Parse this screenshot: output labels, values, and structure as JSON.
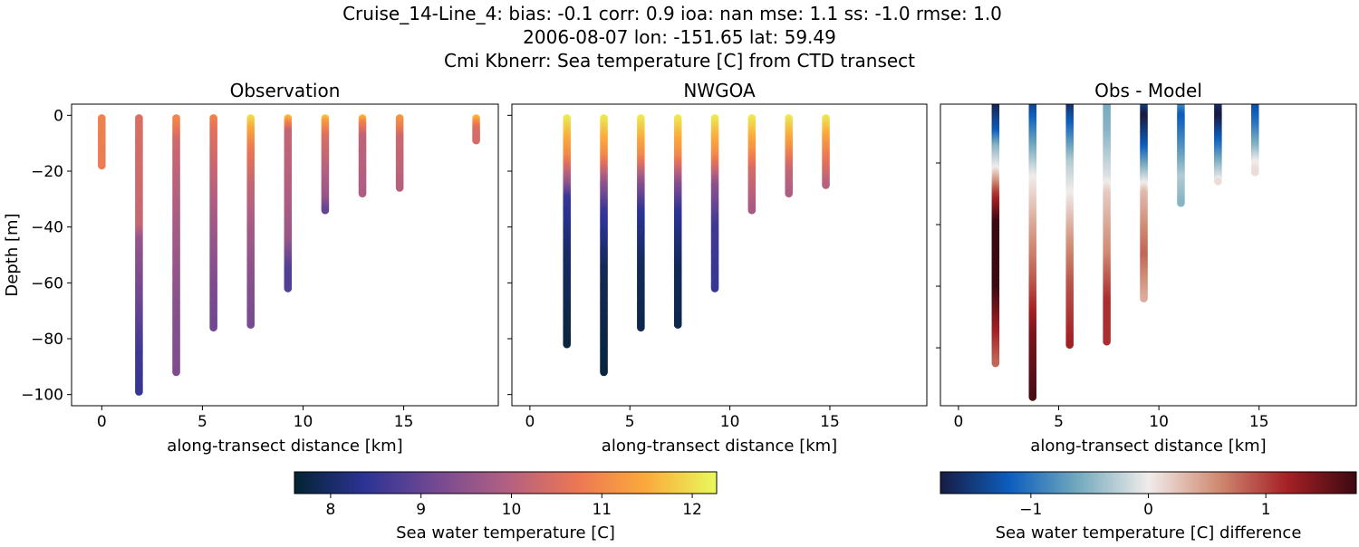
{
  "title_lines": [
    "Cruise_14-Line_4: bias: -0.1  corr: 0.9  ioa: nan  mse: 1.1  ss: -1.0  rmse: 1.0",
    "2006-08-07 lon: -151.65 lat: 59.49",
    "Cmi Kbnerr: Sea temperature [C] from CTD transect"
  ],
  "chart_data": [
    {
      "type": "scatter",
      "title": "Observation",
      "xlabel": "along-transect distance [km]",
      "ylabel": "Depth [m]",
      "xlim": [
        -1.5,
        19.7
      ],
      "ylim": [
        -104,
        4
      ],
      "xticks": [
        0,
        5,
        10,
        15
      ],
      "xtick_labels": [
        "0",
        "5",
        "10",
        "15"
      ],
      "yticks": [
        0,
        -20,
        -40,
        -60,
        -80,
        -100
      ],
      "ytick_labels": [
        "0",
        "−20",
        "−40",
        "−60",
        "−80",
        "−100"
      ],
      "colormap": "thermal",
      "profiles": [
        {
          "x": 0,
          "max_depth": 18,
          "temp_by_depth": [
            [
              0,
              10.9
            ],
            [
              18,
              10.8
            ]
          ]
        },
        {
          "x": 1.85,
          "max_depth": 99,
          "temp_by_depth": [
            [
              0,
              10.5
            ],
            [
              40,
              10.2
            ],
            [
              45,
              9.6
            ],
            [
              70,
              9.0
            ],
            [
              85,
              8.6
            ],
            [
              99,
              8.5
            ]
          ]
        },
        {
          "x": 3.7,
          "max_depth": 92,
          "temp_by_depth": [
            [
              0,
              11
            ],
            [
              3,
              10.9
            ],
            [
              10,
              10.3
            ],
            [
              40,
              9.8
            ],
            [
              70,
              9.4
            ],
            [
              92,
              9.3
            ]
          ]
        },
        {
          "x": 5.55,
          "max_depth": 76,
          "temp_by_depth": [
            [
              0,
              11
            ],
            [
              5,
              10.6
            ],
            [
              20,
              10.2
            ],
            [
              40,
              9.7
            ],
            [
              60,
              9.3
            ],
            [
              76,
              9.1
            ]
          ]
        },
        {
          "x": 7.4,
          "max_depth": 75,
          "temp_by_depth": [
            [
              0,
              12.1
            ],
            [
              5,
              11.5
            ],
            [
              12,
              10.8
            ],
            [
              25,
              10.2
            ],
            [
              40,
              9.8
            ],
            [
              60,
              9.4
            ],
            [
              75,
              9.2
            ]
          ]
        },
        {
          "x": 9.25,
          "max_depth": 62,
          "temp_by_depth": [
            [
              0,
              12
            ],
            [
              3,
              11
            ],
            [
              6,
              10.2
            ],
            [
              30,
              9.9
            ],
            [
              45,
              9.6
            ],
            [
              55,
              8.8
            ],
            [
              62,
              8.8
            ]
          ]
        },
        {
          "x": 11.1,
          "max_depth": 34,
          "temp_by_depth": [
            [
              0,
              12
            ],
            [
              3,
              11.2
            ],
            [
              8,
              10.5
            ],
            [
              20,
              10.0
            ],
            [
              30,
              9.6
            ],
            [
              34,
              9.0
            ]
          ]
        },
        {
          "x": 12.95,
          "max_depth": 28,
          "temp_by_depth": [
            [
              0,
              12
            ],
            [
              3,
              10.9
            ],
            [
              8,
              10.1
            ],
            [
              28,
              9.9
            ]
          ]
        },
        {
          "x": 14.8,
          "max_depth": 26,
          "temp_by_depth": [
            [
              0,
              11.3
            ],
            [
              5,
              10.8
            ],
            [
              8,
              10.3
            ],
            [
              26,
              10.0
            ]
          ]
        },
        {
          "x": 18.6,
          "max_depth": 9,
          "temp_by_depth": [
            [
              0,
              12
            ],
            [
              3,
              11
            ],
            [
              5,
              10.5
            ],
            [
              9,
              10.4
            ]
          ]
        }
      ]
    },
    {
      "type": "scatter",
      "title": "NWGOA",
      "xlabel": "along-transect distance [km]",
      "xlim": [
        -0.9,
        19.85
      ],
      "ylim": [
        -104,
        4
      ],
      "xticks": [
        0,
        5,
        10,
        15
      ],
      "xtick_labels": [
        "0",
        "5",
        "10",
        "15"
      ],
      "yticks": [
        0,
        -20,
        -40,
        -60,
        -80,
        -100
      ],
      "colormap": "thermal",
      "profiles": [
        {
          "x": 1.85,
          "max_depth": 82,
          "temp_by_depth": [
            [
              0,
              12.2
            ],
            [
              15,
              11.0
            ],
            [
              25,
              9.5
            ],
            [
              30,
              8.5
            ],
            [
              50,
              8.0
            ],
            [
              82,
              7.7
            ]
          ]
        },
        {
          "x": 3.7,
          "max_depth": 92,
          "temp_by_depth": [
            [
              0,
              12.2
            ],
            [
              15,
              11
            ],
            [
              25,
              9.5
            ],
            [
              35,
              8.5
            ],
            [
              55,
              7.9
            ],
            [
              92,
              7.7
            ]
          ]
        },
        {
          "x": 5.55,
          "max_depth": 76,
          "temp_by_depth": [
            [
              0,
              12.2
            ],
            [
              15,
              11.0
            ],
            [
              25,
              9.4
            ],
            [
              35,
              8.4
            ],
            [
              55,
              7.9
            ],
            [
              76,
              7.8
            ]
          ]
        },
        {
          "x": 7.4,
          "max_depth": 75,
          "temp_by_depth": [
            [
              0,
              12.2
            ],
            [
              15,
              11.0
            ],
            [
              25,
              9.4
            ],
            [
              35,
              8.4
            ],
            [
              55,
              7.9
            ],
            [
              75,
              7.8
            ]
          ]
        },
        {
          "x": 9.25,
          "max_depth": 62,
          "temp_by_depth": [
            [
              0,
              12.2
            ],
            [
              15,
              11.0
            ],
            [
              25,
              9.5
            ],
            [
              40,
              8.6
            ],
            [
              62,
              8.5
            ]
          ]
        },
        {
          "x": 11.1,
          "max_depth": 34,
          "temp_by_depth": [
            [
              0,
              12.2
            ],
            [
              12,
              11.2
            ],
            [
              20,
              10.4
            ],
            [
              34,
              9.8
            ]
          ]
        },
        {
          "x": 12.95,
          "max_depth": 28,
          "temp_by_depth": [
            [
              0,
              12.2
            ],
            [
              10,
              11.3
            ],
            [
              20,
              10.2
            ],
            [
              28,
              9.9
            ]
          ]
        },
        {
          "x": 14.8,
          "max_depth": 25,
          "temp_by_depth": [
            [
              0,
              12.2
            ],
            [
              10,
              11.2
            ],
            [
              20,
              10.4
            ],
            [
              25,
              10.0
            ]
          ]
        }
      ]
    },
    {
      "type": "scatter",
      "title": "Obs - Model",
      "xlabel": "along-transect distance [km]",
      "xlim": [
        -0.9,
        19.85
      ],
      "ylim": [
        -98.8,
        -0.9
      ],
      "xticks": [
        0,
        5,
        10,
        15
      ],
      "xtick_labels": [
        "0",
        "5",
        "10",
        "15"
      ],
      "yticks": [
        -20,
        -40,
        -60,
        -80
      ],
      "colormap": "balance",
      "profiles": [
        {
          "x": 1.85,
          "max_depth": 85,
          "temp_by_depth": [
            [
              0,
              -1.8
            ],
            [
              10,
              -1.2
            ],
            [
              15,
              -0.5
            ],
            [
              22,
              0
            ],
            [
              30,
              1
            ],
            [
              40,
              1.8
            ],
            [
              60,
              1.8
            ],
            [
              75,
              1.2
            ],
            [
              85,
              0.8
            ]
          ]
        },
        {
          "x": 3.7,
          "max_depth": 96,
          "temp_by_depth": [
            [
              0,
              -1.5
            ],
            [
              10,
              -0.9
            ],
            [
              20,
              -0.3
            ],
            [
              25,
              0
            ],
            [
              40,
              0.4
            ],
            [
              60,
              0.9
            ],
            [
              75,
              1.4
            ],
            [
              96,
              1.7
            ]
          ]
        },
        {
          "x": 5.55,
          "max_depth": 79,
          "temp_by_depth": [
            [
              0,
              -1.7
            ],
            [
              10,
              -1
            ],
            [
              20,
              -0.3
            ],
            [
              30,
              0
            ],
            [
              45,
              0.5
            ],
            [
              60,
              0.9
            ],
            [
              79,
              1.2
            ]
          ]
        },
        {
          "x": 7.4,
          "max_depth": 78,
          "temp_by_depth": [
            [
              0,
              -0.6
            ],
            [
              10,
              -0.5
            ],
            [
              25,
              -0.1
            ],
            [
              30,
              0.2
            ],
            [
              50,
              0.6
            ],
            [
              65,
              1.1
            ],
            [
              78,
              1.1
            ]
          ]
        },
        {
          "x": 9.25,
          "max_depth": 64,
          "temp_by_depth": [
            [
              0,
              -1.3
            ],
            [
              5,
              -1.8
            ],
            [
              15,
              -1.2
            ],
            [
              25,
              -0.2
            ],
            [
              30,
              0.3
            ],
            [
              50,
              0.8
            ],
            [
              64,
              0.4
            ]
          ]
        },
        {
          "x": 11.1,
          "max_depth": 33,
          "temp_by_depth": [
            [
              0,
              -0.7
            ],
            [
              5,
              -1.2
            ],
            [
              15,
              -0.8
            ],
            [
              25,
              -0.3
            ],
            [
              33,
              -0.5
            ]
          ]
        },
        {
          "x": 12.95,
          "max_depth": 26,
          "temp_by_depth": [
            [
              0,
              -1.5
            ],
            [
              5,
              -1.8
            ],
            [
              15,
              -1
            ],
            [
              25,
              -0.1
            ],
            [
              26,
              0.1
            ]
          ]
        },
        {
          "x": 14.8,
          "max_depth": 23,
          "temp_by_depth": [
            [
              0,
              -1.4
            ],
            [
              8,
              -1
            ],
            [
              15,
              -0.5
            ],
            [
              20,
              0
            ],
            [
              23,
              0.1
            ]
          ]
        }
      ]
    }
  ],
  "colorbars": [
    {
      "label": "Sea water temperature [C]",
      "colormap": "thermal",
      "range": [
        7.6,
        12.27
      ],
      "ticks": [
        8,
        9,
        10,
        11,
        12
      ],
      "tick_labels": [
        "8",
        "9",
        "10",
        "11",
        "12"
      ],
      "colors": [
        "#042333",
        "#2c3395",
        "#744992",
        "#b15f82",
        "#eb7655",
        "#fbaa3c",
        "#e8fa5b"
      ]
    },
    {
      "label": "Sea water temperature [C] difference",
      "colormap": "balance",
      "range": [
        -1.77,
        1.77
      ],
      "ticks": [
        -1,
        0,
        1
      ],
      "tick_labels": [
        "−1",
        "0",
        "1"
      ],
      "colors": [
        "#181c43",
        "#0c5ebe",
        "#75aabe",
        "#f1eceb",
        "#d08b73",
        "#a52125",
        "#3c0912"
      ]
    }
  ]
}
